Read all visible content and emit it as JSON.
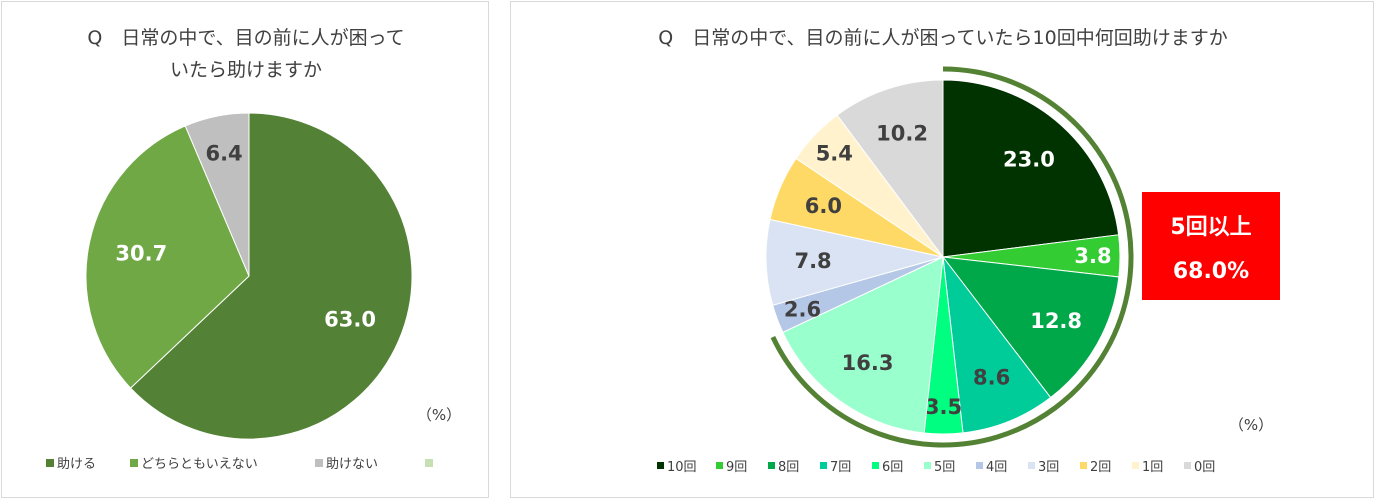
{
  "chart_data": [
    {
      "type": "pie",
      "title_lines": [
        "Q　日常の中で、目の前に人が困って",
        "いたら助けますか"
      ],
      "unit": "（%）",
      "series": [
        {
          "name": "助ける",
          "value": 63.0,
          "label": "63.0",
          "color": "#538135",
          "label_color": "#ffffff"
        },
        {
          "name": "どちらともいえない",
          "value": 30.7,
          "label": "30.7",
          "color": "#70a845",
          "label_color": "#ffffff"
        },
        {
          "name": "助けない",
          "value": 6.4,
          "label": "6.4",
          "color": "#bfbfbf",
          "label_color": "#404040"
        }
      ],
      "legend": [
        {
          "name": "助ける",
          "color": "#538135"
        },
        {
          "name": "どちらともいえない",
          "color": "#70a845"
        },
        {
          "name": "助けない",
          "color": "#bfbfbf"
        },
        {
          "name": "",
          "color": "#c6e0b4"
        }
      ]
    },
    {
      "type": "pie",
      "title": "Q　日常の中で、目の前に人が困っていたら10回中何回助けますか",
      "unit": "（%）",
      "series": [
        {
          "name": "10回",
          "value": 23.0,
          "label": "23.0",
          "color": "#003300",
          "label_color": "#ffffff"
        },
        {
          "name": "9回",
          "value": 3.8,
          "label": "3.8",
          "color": "#33cc33",
          "label_color": "#ffffff"
        },
        {
          "name": "8回",
          "value": 12.8,
          "label": "12.8",
          "color": "#00a84a",
          "label_color": "#ffffff"
        },
        {
          "name": "7回",
          "value": 8.6,
          "label": "8.6",
          "color": "#00cc99",
          "label_color": "#404040"
        },
        {
          "name": "6回",
          "value": 3.5,
          "label": "3.5",
          "color": "#00ff80",
          "label_color": "#404040"
        },
        {
          "name": "5回",
          "value": 16.3,
          "label": "16.3",
          "color": "#99ffcc",
          "label_color": "#404040"
        },
        {
          "name": "4回",
          "value": 2.6,
          "label": "2.6",
          "color": "#b4c7e7",
          "label_color": "#404040"
        },
        {
          "name": "3回",
          "value": 7.8,
          "label": "7.8",
          "color": "#dae3f3",
          "label_color": "#404040"
        },
        {
          "name": "2回",
          "value": 6.0,
          "label": "6.0",
          "color": "#ffd966",
          "label_color": "#404040"
        },
        {
          "name": "1回",
          "value": 5.4,
          "label": "5.4",
          "color": "#fff2cc",
          "label_color": "#404040"
        },
        {
          "name": "0回",
          "value": 10.2,
          "label": "10.2",
          "color": "#d9d9d9",
          "label_color": "#404040"
        }
      ],
      "callout": {
        "lines": [
          "5回以上",
          "68.0%"
        ],
        "color": "#ff0000",
        "bracket_color": "#548235"
      }
    }
  ]
}
